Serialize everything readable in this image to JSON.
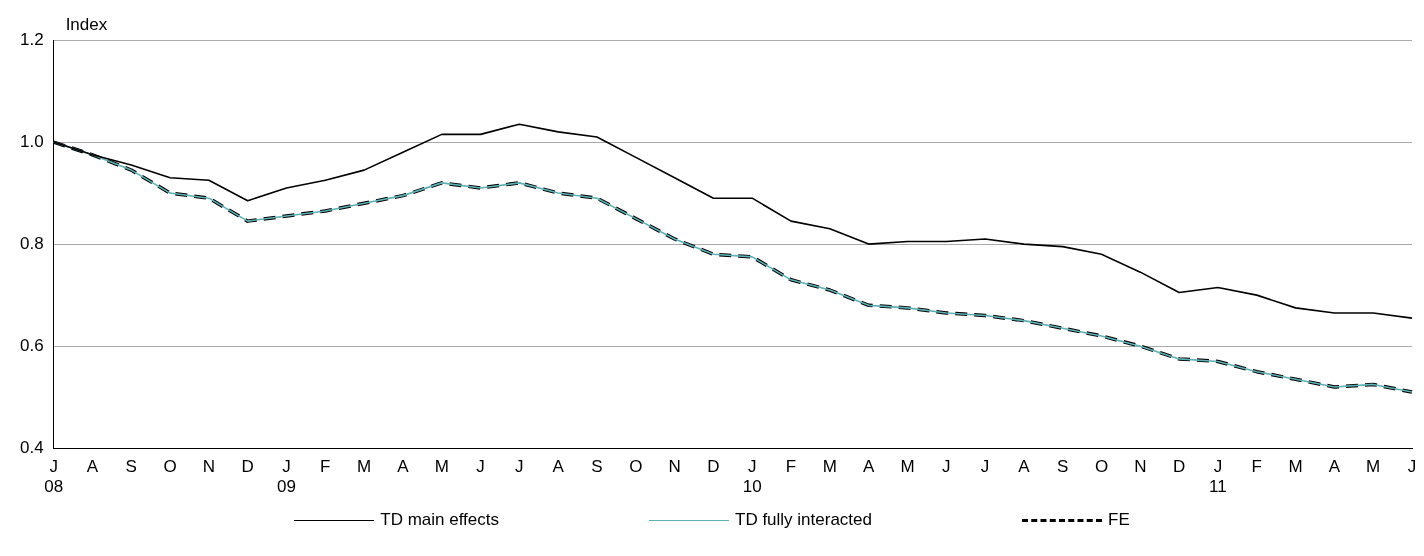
{
  "chart_data": {
    "type": "line",
    "ylabel": "Index",
    "categories": [
      "J\n08",
      "A",
      "S",
      "O",
      "N",
      "D",
      "J\n09",
      "F",
      "M",
      "A",
      "M",
      "J",
      "J",
      "A",
      "S",
      "O",
      "N",
      "D",
      "J\n10",
      "F",
      "M",
      "A",
      "M",
      "J",
      "J",
      "A",
      "S",
      "O",
      "N",
      "D",
      "J\n11",
      "F",
      "M",
      "A",
      "M",
      "J"
    ],
    "series": [
      {
        "name": "TD main effects",
        "color": "#000000",
        "line_style": "solid",
        "values": [
          1.0,
          0.975,
          0.955,
          0.93,
          0.925,
          0.885,
          0.91,
          0.925,
          0.945,
          0.98,
          1.015,
          1.015,
          1.035,
          1.02,
          1.01,
          0.97,
          0.93,
          0.89,
          0.89,
          0.845,
          0.83,
          0.8,
          0.805,
          0.805,
          0.81,
          0.8,
          0.795,
          0.78,
          0.745,
          0.705,
          0.715,
          0.7,
          0.675,
          0.665,
          0.665,
          0.655
        ]
      },
      {
        "name": "TD fully interacted",
        "color": "#5fb0b4",
        "line_style": "solid",
        "values": [
          1.0,
          0.975,
          0.945,
          0.9,
          0.89,
          0.845,
          0.855,
          0.865,
          0.88,
          0.895,
          0.92,
          0.91,
          0.92,
          0.9,
          0.89,
          0.85,
          0.81,
          0.78,
          0.775,
          0.73,
          0.71,
          0.68,
          0.675,
          0.665,
          0.66,
          0.65,
          0.635,
          0.62,
          0.6,
          0.575,
          0.57,
          0.55,
          0.535,
          0.52,
          0.525,
          0.51
        ]
      },
      {
        "name": "FE",
        "color": "#000000",
        "line_style": "dashed",
        "values": [
          1.0,
          0.975,
          0.945,
          0.9,
          0.89,
          0.845,
          0.855,
          0.865,
          0.88,
          0.895,
          0.92,
          0.91,
          0.92,
          0.9,
          0.89,
          0.85,
          0.81,
          0.78,
          0.775,
          0.73,
          0.71,
          0.68,
          0.675,
          0.665,
          0.66,
          0.65,
          0.635,
          0.62,
          0.6,
          0.575,
          0.57,
          0.55,
          0.535,
          0.52,
          0.525,
          0.51
        ]
      }
    ],
    "ylim": [
      0.4,
      1.2
    ],
    "yticks": [
      {
        "value": 0.4,
        "label": "0.4"
      },
      {
        "value": 0.6,
        "label": "0.6"
      },
      {
        "value": 0.8,
        "label": "0.8"
      },
      {
        "value": 1.0,
        "label": "1.0"
      },
      {
        "value": 1.2,
        "label": "1.2"
      }
    ],
    "grid": "y",
    "legend": "bottom",
    "marker": "none"
  }
}
